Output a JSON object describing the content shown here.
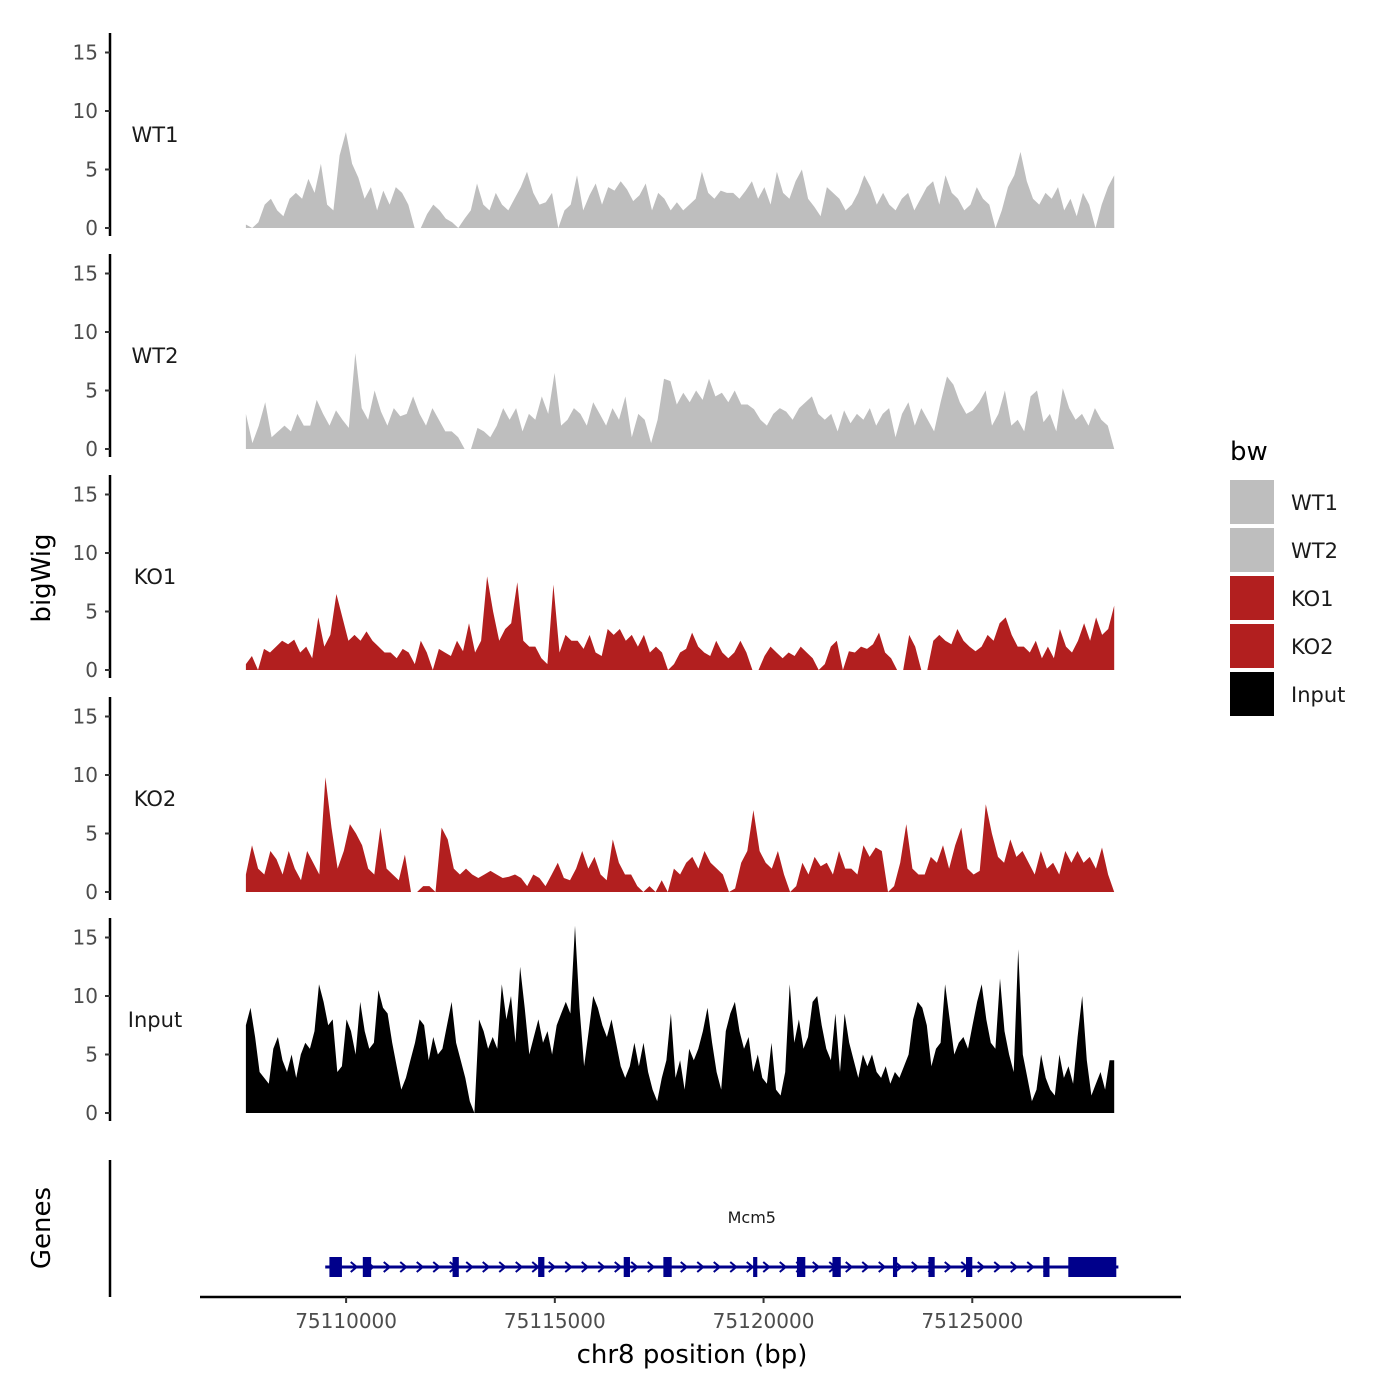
{
  "chart_data": {
    "type": "area",
    "title": "",
    "xlabel": "chr8 position (bp)",
    "ylabel": "bigWig",
    "genes_label": "Genes",
    "xlim": [
      75106500,
      75130000
    ],
    "ylim": [
      0,
      16
    ],
    "x_ticks": [
      75110000,
      75115000,
      75120000,
      75125000
    ],
    "x_tick_labels": [
      "75110000",
      "75115000",
      "75120000",
      "75125000"
    ],
    "y_ticks": [
      0,
      5,
      10,
      15
    ],
    "y_tick_labels": [
      "0",
      "5",
      "10",
      "15"
    ],
    "legend": {
      "title": "bw",
      "position": "right",
      "entries": [
        {
          "name": "WT1",
          "color": "#bebebe"
        },
        {
          "name": "WT2",
          "color": "#bebebe"
        },
        {
          "name": "KO1",
          "color": "#b21f1f"
        },
        {
          "name": "KO2",
          "color": "#b21f1f"
        },
        {
          "name": "Input",
          "color": "#000000"
        }
      ]
    },
    "series": [
      {
        "name": "WT1",
        "color": "#bebebe",
        "x_start": 75107600,
        "x_end": 75128400,
        "bin_size": 200,
        "values": [
          0.3,
          0,
          0.5,
          2,
          2.5,
          1.5,
          1,
          2.5,
          3,
          2.5,
          4.2,
          3,
          5.5,
          2,
          1.5,
          6.2,
          8.2,
          5.5,
          4.3,
          2.5,
          3.5,
          1.5,
          3.2,
          2,
          3.5,
          3,
          2,
          0,
          0,
          1.2,
          2,
          1.5,
          0.8,
          0.5,
          0,
          0.8,
          1.5,
          3.8,
          2,
          1.5,
          3,
          2,
          1.5,
          2.5,
          3.5,
          4.8,
          3,
          2,
          2.2,
          3,
          0,
          1.5,
          2,
          4.5,
          1.5,
          2.8,
          3.8,
          2,
          3.5,
          3.2,
          4,
          3.3,
          2.3,
          2.8,
          3.8,
          1.5,
          3,
          2.5,
          1.5,
          2.2,
          1.5,
          2,
          2.5,
          4.8,
          3,
          2.5,
          3.2,
          3,
          3,
          2.5,
          3.2,
          4,
          2.5,
          3.5,
          2,
          4.8,
          3,
          2.5,
          4,
          5,
          2.5,
          1.8,
          1,
          3.5,
          3,
          2.5,
          1.5,
          2,
          3,
          4.5,
          3.5,
          2,
          3,
          2,
          1.5,
          2.5,
          3,
          1.5,
          2.5,
          3.5,
          4,
          2,
          4.5,
          3,
          2.5,
          1.5,
          2,
          3.5,
          2.5,
          2,
          0,
          1.5,
          3.5,
          4.5,
          6.5,
          4,
          2.5,
          2,
          3,
          2.5,
          3.5,
          1.5,
          2.5,
          1,
          3,
          2,
          0,
          2,
          3.5,
          4.5
        ]
      },
      {
        "name": "WT2",
        "color": "#bebebe",
        "x_start": 75107600,
        "x_end": 75128400,
        "bin_size": 200,
        "values": [
          3,
          0.5,
          2,
          4,
          1,
          1.5,
          2,
          1.5,
          3,
          2,
          2,
          4.2,
          3,
          2,
          3.3,
          2.5,
          1.8,
          8.2,
          3.5,
          2.5,
          5,
          3.2,
          2,
          3.5,
          2.8,
          3,
          4.5,
          3,
          2,
          3.5,
          2.5,
          1.5,
          1.5,
          1,
          0,
          0,
          1.8,
          1.5,
          1,
          2,
          3.5,
          2.5,
          3.5,
          1.5,
          3,
          2.5,
          4.5,
          3,
          6.5,
          2,
          2.5,
          3.5,
          3,
          2,
          4,
          3,
          2,
          3.5,
          2.5,
          4.5,
          1,
          3,
          2.5,
          0.5,
          2.5,
          6,
          5.8,
          3.8,
          4.8,
          4,
          5,
          4.2,
          6,
          4.5,
          4.8,
          4,
          5,
          3.8,
          3.8,
          3.4,
          2.5,
          2,
          3,
          3.5,
          3.2,
          2.5,
          3.5,
          4,
          4.5,
          3,
          2.5,
          3,
          1.5,
          3.3,
          2.2,
          3,
          2.5,
          3.5,
          2,
          3,
          3.5,
          1,
          3,
          4,
          2,
          3.5,
          2.5,
          1.5,
          4,
          6.2,
          5.5,
          4,
          3,
          3.3,
          4,
          5,
          2,
          3,
          5,
          2,
          2.5,
          1.5,
          4.5,
          5,
          2.3,
          3,
          1.5,
          5.2,
          3.5,
          2.5,
          3,
          2,
          3.5,
          2.5,
          2,
          0
        ]
      },
      {
        "name": "KO1",
        "color": "#b21f1f",
        "x_start": 75107600,
        "x_end": 75128400,
        "bin_size": 200,
        "values": [
          0.5,
          1.2,
          0,
          1.8,
          1.5,
          2,
          2.5,
          2.2,
          2.6,
          1.5,
          2,
          1,
          4.5,
          2,
          3,
          6.5,
          4.5,
          2.5,
          3,
          2.5,
          3.3,
          2.5,
          2,
          1.5,
          1.5,
          1,
          1.8,
          1.5,
          0.5,
          2.5,
          1.5,
          0,
          1.8,
          1.5,
          1.2,
          2.5,
          1.6,
          4,
          1.5,
          2.5,
          8,
          5,
          2.5,
          3.5,
          4,
          7.5,
          2.5,
          2,
          2,
          1,
          0.5,
          7.3,
          1.5,
          3,
          2.5,
          2.5,
          1.8,
          3,
          1.5,
          1.2,
          3.5,
          3,
          3.5,
          2.5,
          3,
          2,
          3,
          1.5,
          2,
          1.5,
          0,
          0.5,
          1.5,
          1.8,
          3.2,
          2,
          1.5,
          1.2,
          2.5,
          1.5,
          1,
          1.5,
          2.5,
          1.5,
          0,
          0,
          1.2,
          2,
          1.5,
          1,
          1.5,
          1.2,
          2,
          1.5,
          1,
          0,
          0.5,
          2,
          2.5,
          0,
          1.6,
          1.5,
          2,
          1.8,
          2.2,
          3.2,
          1.5,
          1,
          0,
          0,
          3,
          2,
          0,
          0,
          2.5,
          3,
          2.5,
          2.2,
          3.5,
          2.5,
          2,
          1.6,
          2,
          3,
          2.5,
          4,
          4.5,
          3,
          2,
          2,
          1.5,
          2.5,
          1,
          2,
          1,
          3.5,
          2,
          1.5,
          2.5,
          4,
          2.5,
          4.5,
          3,
          3.5,
          5.5
        ]
      },
      {
        "name": "KO2",
        "color": "#b21f1f",
        "x_start": 75107600,
        "x_end": 75128400,
        "bin_size": 200,
        "values": [
          1.5,
          4,
          2,
          1.5,
          3.5,
          2.8,
          1.5,
          3.5,
          2,
          1,
          3.5,
          2.5,
          1.5,
          9.8,
          5.5,
          2,
          3.5,
          5.8,
          5,
          4,
          2,
          1.5,
          5.5,
          2,
          1.5,
          1,
          3.2,
          0,
          0,
          0.5,
          0.5,
          0,
          5.5,
          4.5,
          2,
          1.5,
          2,
          1.5,
          1.2,
          1.5,
          1.8,
          1.5,
          1.2,
          1.3,
          1.5,
          1.2,
          0.5,
          1.5,
          1.2,
          0.5,
          1.5,
          2.5,
          1.2,
          1,
          2,
          3.5,
          2,
          3,
          1.5,
          1,
          4.5,
          2.5,
          1.5,
          1.5,
          0.5,
          0,
          0.5,
          0,
          1,
          0,
          2,
          1.5,
          2.5,
          3,
          2,
          3.5,
          2.5,
          2,
          1.5,
          0,
          0.3,
          2.5,
          3.5,
          7,
          3.5,
          2.5,
          2,
          3.5,
          1.5,
          0,
          0.5,
          2.5,
          1.5,
          3,
          2.2,
          2.5,
          1.5,
          3.5,
          2,
          2,
          1.5,
          4,
          3,
          3.8,
          3.5,
          0,
          0.5,
          2.5,
          5.8,
          2,
          1.5,
          1.5,
          3,
          2.5,
          4,
          2,
          4,
          5.5,
          2,
          1.5,
          1.8,
          7.5,
          5,
          3,
          2.5,
          4.5,
          3,
          3.5,
          2.5,
          1.5,
          3.5,
          2,
          2.5,
          1.5,
          3.5,
          2.5,
          3.5,
          2.5,
          3,
          2,
          3.8,
          1.5,
          0
        ]
      },
      {
        "name": "Input",
        "color": "#000000",
        "x_start": 75107600,
        "x_end": 75128400,
        "bin_size": 150,
        "values": [
          7.5,
          9,
          6.5,
          3.5,
          3,
          2.5,
          5.5,
          6.5,
          4.5,
          3.5,
          5,
          3,
          5,
          6,
          5.5,
          7,
          11,
          9.5,
          7.5,
          8,
          3.5,
          4,
          8,
          7,
          5,
          9.5,
          7,
          5.5,
          6,
          10.5,
          9,
          8.5,
          6,
          4,
          2,
          3,
          4.5,
          6,
          8,
          7.5,
          4.5,
          6.5,
          5,
          5.5,
          7.5,
          9.5,
          6,
          4.5,
          3,
          1,
          0,
          8,
          7,
          5.5,
          6.5,
          5.5,
          11,
          8,
          10,
          6,
          12.5,
          9,
          5,
          6.5,
          8,
          6,
          7,
          5,
          7.5,
          8.5,
          9.5,
          8.5,
          16,
          9,
          4,
          7,
          10,
          9,
          7.5,
          6.5,
          8,
          6,
          4,
          3,
          4,
          6,
          4,
          6,
          3.5,
          2,
          1,
          3,
          4.5,
          8.5,
          3,
          4.5,
          2,
          5.5,
          4.5,
          5.5,
          7,
          9,
          6,
          3.5,
          2,
          7,
          8.5,
          9.5,
          7,
          5.5,
          6.5,
          3.5,
          5,
          3,
          2.5,
          6,
          2,
          1.5,
          3.5,
          11,
          6,
          8,
          5.5,
          6.5,
          9.5,
          10,
          7.5,
          5.5,
          4.5,
          8.5,
          3.5,
          8.5,
          6,
          4.5,
          3,
          5,
          4,
          5,
          3.5,
          3,
          4,
          2.5,
          3.5,
          3,
          4,
          5,
          8,
          9.5,
          9,
          7.5,
          4,
          5.5,
          6,
          11,
          8,
          5,
          6,
          6.5,
          5.5,
          7.5,
          9.5,
          11,
          8,
          6,
          5.5,
          11.5,
          7,
          5,
          3.5,
          14,
          5,
          3,
          1,
          2,
          5,
          3,
          2,
          1.5,
          5,
          3,
          4,
          2.5,
          6.5,
          10,
          4.5,
          1.5,
          2.5,
          3.5,
          2,
          4.5,
          4.5
        ]
      }
    ],
    "gene_track": {
      "gene_name": "Mcm5",
      "strand": "+",
      "start": 75109500,
      "end": 75128500,
      "exons": [
        [
          75109600,
          75109900
        ],
        [
          75110400,
          75110600
        ],
        [
          75112550,
          75112700
        ],
        [
          75114600,
          75114750
        ],
        [
          75116650,
          75116800
        ],
        [
          75117600,
          75117800
        ],
        [
          75119750,
          75119850
        ],
        [
          75120800,
          75121000
        ],
        [
          75121650,
          75121850
        ],
        [
          75123100,
          75123200
        ],
        [
          75123950,
          75124100
        ],
        [
          75124850,
          75125000
        ],
        [
          75126700,
          75126850
        ],
        [
          75127300,
          75128450
        ]
      ]
    }
  }
}
